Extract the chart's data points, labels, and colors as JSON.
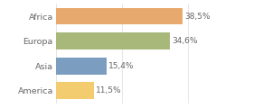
{
  "categories": [
    "America",
    "Asia",
    "Europa",
    "Africa"
  ],
  "values": [
    11.5,
    15.4,
    34.6,
    38.5
  ],
  "labels": [
    "11,5%",
    "15,4%",
    "34,6%",
    "38,5%"
  ],
  "bar_colors": [
    "#f2cc6e",
    "#7b9dc0",
    "#a8b87a",
    "#e8a96e"
  ],
  "background_color": "#ffffff",
  "xlim": [
    0,
    46
  ],
  "label_fontsize": 6.5,
  "tick_fontsize": 6.8,
  "tick_color": "#666666"
}
